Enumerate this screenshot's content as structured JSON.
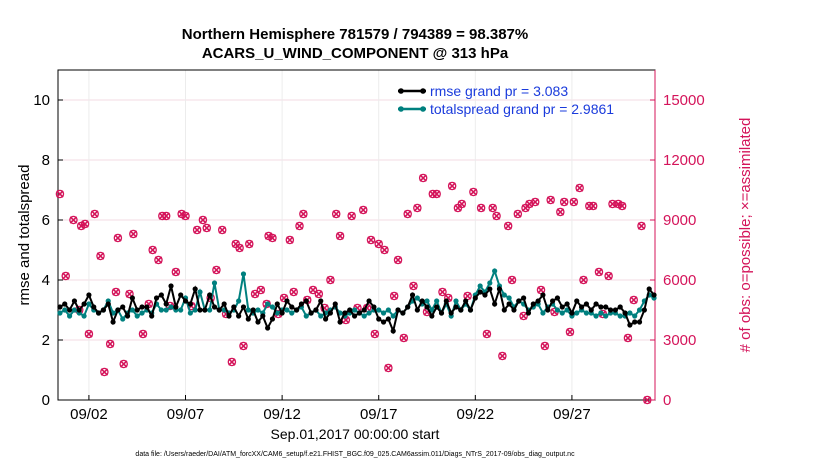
{
  "chart_data": {
    "type": "line",
    "title": "Northern Hemisphere 781579 / 794389 = 98.387%",
    "subtitle": "ACARS_U_WIND_COMPONENT @ 313 hPa",
    "xlabel": "Sep.01,2017 00:00:00 start",
    "ylabel_left": "rmse and totalspread",
    "ylabel_right": "# of obs: o=possible; ×=assimilated",
    "ylim_left": [
      0,
      11
    ],
    "ylim_right": [
      0,
      16500
    ],
    "xlim": [
      0.4,
      31.3
    ],
    "x_ticks": [
      {
        "x": 2,
        "label": "09/02"
      },
      {
        "x": 7,
        "label": "09/07"
      },
      {
        "x": 12,
        "label": "09/12"
      },
      {
        "x": 17,
        "label": "09/17"
      },
      {
        "x": 22,
        "label": "09/22"
      },
      {
        "x": 27,
        "label": "09/27"
      }
    ],
    "y_ticks_left": [
      "0",
      "2",
      "4",
      "6",
      "8",
      "10"
    ],
    "y_ticks_right": [
      "0",
      "3000",
      "6000",
      "9000",
      "12000",
      "15000"
    ],
    "colors": {
      "rmse": "#000000",
      "spread": "#00807F",
      "obs": "#D4145A",
      "grid": "#ececec"
    },
    "legend": {
      "placement": "top-right",
      "entries": [
        "rmse grand pr = 3.083",
        "totalspread grand pr = 2.9861"
      ]
    },
    "series": [
      {
        "name": "rmse",
        "axis": "left",
        "values": [
          3.1,
          3.2,
          3.0,
          3.3,
          3.0,
          3.2,
          3.5,
          3.1,
          2.9,
          3.0,
          3.2,
          2.6,
          3.0,
          3.1,
          2.8,
          3.4,
          3.0,
          3.1,
          3.1,
          2.8,
          3.4,
          3.5,
          3.2,
          3.8,
          3.1,
          3.5,
          3.3,
          3.2,
          3.7,
          3.0,
          3.0,
          3.5,
          3.1,
          3.0,
          3.2,
          2.8,
          3.1,
          2.8,
          3.1,
          2.7,
          3.0,
          2.6,
          2.8,
          2.4,
          2.7,
          3.2,
          2.9,
          3.3,
          3.1,
          3.0,
          3.2,
          3.3,
          2.9,
          3.0,
          3.3,
          2.7,
          2.9,
          3.2,
          2.6,
          2.9,
          3.0,
          2.8,
          2.9,
          3.0,
          3.3,
          3.1,
          2.7,
          2.6,
          2.7,
          2.3,
          3.0,
          2.9,
          3.1,
          3.5,
          3.0,
          3.3,
          3.1,
          2.8,
          3.1,
          2.9,
          3.3,
          2.9,
          3.1,
          3.0,
          3.3,
          3.0,
          3.4,
          3.6,
          3.5,
          3.7,
          3.2,
          3.7,
          3.0,
          3.2,
          3.0,
          3.3,
          3.4,
          2.9,
          3.2,
          3.3,
          3.5,
          3.0,
          3.3,
          3.4,
          3.1,
          3.2,
          2.9,
          3.3,
          3.1,
          3.2,
          3.0,
          3.2,
          3.1,
          3.1,
          3.0,
          3.0,
          3.1,
          2.9,
          2.5,
          2.6,
          2.6,
          3.0,
          3.7,
          3.5
        ],
        "x_start": 0.5,
        "x_step": 0.25
      },
      {
        "name": "totalspread",
        "axis": "left",
        "values": [
          2.9,
          3.0,
          2.8,
          3.0,
          2.9,
          2.8,
          3.2,
          3.0,
          2.9,
          3.0,
          3.3,
          2.9,
          3.0,
          2.7,
          2.9,
          3.0,
          2.8,
          2.9,
          3.0,
          2.9,
          3.2,
          3.0,
          3.0,
          3.1,
          3.0,
          3.0,
          3.4,
          2.9,
          3.0,
          3.6,
          3.0,
          3.0,
          3.9,
          3.0,
          3.0,
          2.9,
          3.0,
          3.3,
          4.2,
          3.0,
          2.9,
          3.0,
          2.9,
          3.2,
          3.1,
          2.9,
          3.0,
          3.0,
          2.9,
          3.0,
          3.1,
          2.8,
          2.9,
          3.0,
          2.8,
          2.9,
          3.0,
          3.1,
          2.9,
          2.8,
          2.9,
          3.0,
          2.9,
          2.8,
          2.9,
          3.0,
          3.0,
          2.9,
          3.0,
          2.8,
          3.0,
          2.9,
          3.1,
          3.3,
          3.4,
          3.2,
          3.3,
          3.0,
          3.3,
          2.9,
          3.2,
          2.8,
          3.3,
          3.0,
          3.2,
          3.0,
          3.5,
          3.8,
          3.6,
          3.9,
          4.3,
          3.8,
          3.5,
          3.4,
          3.1,
          3.3,
          3.2,
          3.0,
          3.1,
          3.2,
          2.9,
          3.1,
          3.2,
          3.0,
          2.9,
          3.0,
          2.8,
          2.9,
          3.0,
          2.9,
          2.9,
          2.8,
          2.9,
          2.8,
          2.9,
          2.9,
          2.8,
          2.8,
          2.9,
          2.8,
          3.0,
          3.3,
          3.5,
          3.4
        ],
        "x_start": 0.5,
        "x_step": 0.25
      },
      {
        "name": "obs_possible",
        "axis": "right",
        "points": [
          [
            0.5,
            10300
          ],
          [
            0.8,
            6200
          ],
          [
            1.2,
            9000
          ],
          [
            1.5,
            4500
          ],
          [
            1.6,
            8700
          ],
          [
            1.8,
            8800
          ],
          [
            2.0,
            3300
          ],
          [
            2.3,
            9300
          ],
          [
            2.6,
            7200
          ],
          [
            2.8,
            1400
          ],
          [
            3.1,
            2800
          ],
          [
            3.4,
            5400
          ],
          [
            3.5,
            8100
          ],
          [
            3.8,
            1800
          ],
          [
            4.1,
            5300
          ],
          [
            4.3,
            8300
          ],
          [
            4.8,
            3300
          ],
          [
            5.1,
            4800
          ],
          [
            5.3,
            7500
          ],
          [
            5.6,
            7000
          ],
          [
            5.8,
            9200
          ],
          [
            6.0,
            9200
          ],
          [
            6.2,
            4700
          ],
          [
            6.5,
            6400
          ],
          [
            6.8,
            9300
          ],
          [
            7.0,
            9200
          ],
          [
            7.3,
            4700
          ],
          [
            7.6,
            8500
          ],
          [
            7.9,
            9000
          ],
          [
            8.1,
            8600
          ],
          [
            8.3,
            5100
          ],
          [
            8.6,
            6500
          ],
          [
            8.9,
            8500
          ],
          [
            9.1,
            4300
          ],
          [
            9.4,
            1900
          ],
          [
            9.6,
            7800
          ],
          [
            9.8,
            7600
          ],
          [
            10.0,
            2700
          ],
          [
            10.3,
            7800
          ],
          [
            10.6,
            5300
          ],
          [
            10.9,
            5500
          ],
          [
            11.2,
            4800
          ],
          [
            11.3,
            8200
          ],
          [
            11.5,
            8100
          ],
          [
            11.8,
            4300
          ],
          [
            12.1,
            5100
          ],
          [
            12.4,
            8000
          ],
          [
            12.6,
            5400
          ],
          [
            12.9,
            8700
          ],
          [
            13.1,
            9300
          ],
          [
            13.3,
            5000
          ],
          [
            13.6,
            5500
          ],
          [
            13.9,
            5300
          ],
          [
            14.2,
            4600
          ],
          [
            14.5,
            6000
          ],
          [
            14.8,
            9300
          ],
          [
            15.0,
            8200
          ],
          [
            15.3,
            4000
          ],
          [
            15.6,
            9200
          ],
          [
            15.9,
            4600
          ],
          [
            16.2,
            9500
          ],
          [
            16.4,
            4600
          ],
          [
            16.6,
            8000
          ],
          [
            16.8,
            3300
          ],
          [
            17.0,
            7800
          ],
          [
            17.3,
            7500
          ],
          [
            17.5,
            1600
          ],
          [
            17.8,
            5200
          ],
          [
            18.0,
            7000
          ],
          [
            18.3,
            3100
          ],
          [
            18.5,
            9300
          ],
          [
            18.8,
            5700
          ],
          [
            19.0,
            9600
          ],
          [
            19.3,
            11100
          ],
          [
            19.5,
            4400
          ],
          [
            19.8,
            10300
          ],
          [
            20.0,
            10300
          ],
          [
            20.3,
            5400
          ],
          [
            20.6,
            5100
          ],
          [
            20.8,
            10700
          ],
          [
            21.1,
            9600
          ],
          [
            21.3,
            9800
          ],
          [
            21.6,
            5200
          ],
          [
            21.9,
            10400
          ],
          [
            22.3,
            9600
          ],
          [
            22.6,
            3300
          ],
          [
            22.9,
            9600
          ],
          [
            23.1,
            9200
          ],
          [
            23.4,
            2200
          ],
          [
            23.7,
            8700
          ],
          [
            23.9,
            6000
          ],
          [
            24.2,
            9300
          ],
          [
            24.5,
            4200
          ],
          [
            24.6,
            9600
          ],
          [
            24.8,
            9800
          ],
          [
            25.1,
            9900
          ],
          [
            25.4,
            5500
          ],
          [
            25.6,
            2700
          ],
          [
            25.9,
            10000
          ],
          [
            26.1,
            4400
          ],
          [
            26.4,
            9400
          ],
          [
            26.6,
            9900
          ],
          [
            26.9,
            3400
          ],
          [
            27.1,
            9900
          ],
          [
            27.4,
            10600
          ],
          [
            27.6,
            6000
          ],
          [
            27.9,
            9700
          ],
          [
            28.1,
            9700
          ],
          [
            28.4,
            6400
          ],
          [
            28.6,
            4300
          ],
          [
            28.9,
            6200
          ],
          [
            29.1,
            9800
          ],
          [
            29.4,
            9800
          ],
          [
            29.6,
            9700
          ],
          [
            29.9,
            3100
          ],
          [
            30.2,
            5000
          ],
          [
            30.6,
            8700
          ],
          [
            30.9,
            0
          ]
        ]
      }
    ]
  },
  "footer": "data file: /Users/raeder/DAI/ATM_forcXX/CAM6_setup/f.e21.FHIST_BGC.f09_025.CAM6assim.011/Diags_NTrS_2017-09/obs_diag_output.nc"
}
